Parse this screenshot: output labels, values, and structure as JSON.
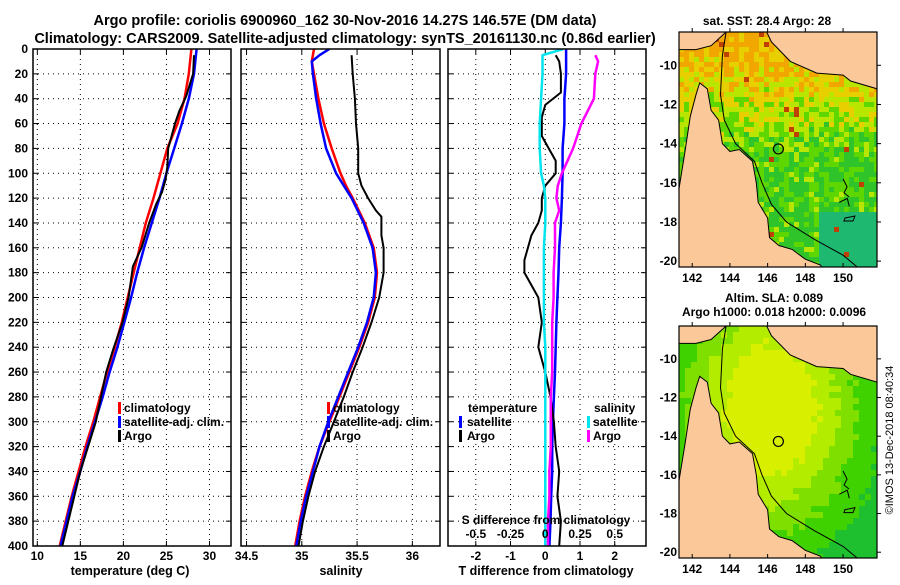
{
  "header": {
    "title_line1": "Argo profile: coriolis 6900960_162 30-Nov-2016 14.27S 146.57E (DM data)",
    "title_line2": "Climatology: CARS2009. Satellite-adjusted climatology: synTS_20161130.nc (0.86d earlier)"
  },
  "colors": {
    "climatology": "#ff0000",
    "satellite": "#0000ff",
    "argo": "#000000",
    "salinity_satellite": "#00e5ee",
    "salinity_argo": "#ff00ff",
    "land": "#fbc89a"
  },
  "chart_data": [
    {
      "type": "line",
      "id": "temperature",
      "xlabel": "temperature (deg C)",
      "ylabel": "",
      "xlim": [
        9.5,
        32.5
      ],
      "ylim": [
        400,
        0
      ],
      "xticks": [
        10,
        15,
        20,
        25,
        30
      ],
      "xtick_labels": [
        "10",
        "15",
        "20",
        "25",
        "30"
      ],
      "yticks": [
        0,
        20,
        40,
        60,
        80,
        100,
        120,
        140,
        160,
        180,
        200,
        220,
        240,
        260,
        280,
        300,
        320,
        340,
        360,
        380,
        400
      ],
      "ytick_labels": [
        "0",
        "20",
        "40",
        "60",
        "80",
        "100",
        "120",
        "140",
        "160",
        "180",
        "200",
        "220",
        "240",
        "260",
        "280",
        "300",
        "320",
        "340",
        "360",
        "380",
        "400"
      ],
      "grid": true,
      "legend": {
        "position": "center-right",
        "entries": [
          "climatology",
          "satellite-adj. clim.",
          "Argo"
        ]
      },
      "series": [
        {
          "name": "climatology",
          "color_key": "climatology",
          "depth": [
            0,
            20,
            40,
            60,
            80,
            100,
            120,
            140,
            160,
            180,
            200,
            220,
            240,
            260,
            280,
            300,
            320,
            340,
            360,
            380,
            400
          ],
          "values": [
            27.9,
            27.6,
            27.1,
            26.3,
            25.1,
            24.3,
            23.5,
            22.6,
            21.9,
            21.2,
            20.5,
            19.8,
            19.0,
            18.1,
            17.3,
            16.5,
            15.6,
            14.8,
            14.0,
            13.3,
            12.6
          ]
        },
        {
          "name": "satellite-adj. clim.",
          "color_key": "satellite",
          "depth": [
            0,
            20,
            40,
            60,
            80,
            100,
            120,
            140,
            160,
            180,
            200,
            220,
            240,
            260,
            280,
            300,
            320,
            340,
            360,
            380,
            400
          ],
          "values": [
            28.5,
            28.2,
            27.6,
            26.8,
            25.9,
            25.0,
            24.2,
            23.3,
            22.4,
            21.6,
            20.9,
            20.1,
            19.3,
            18.4,
            17.6,
            16.7,
            15.8,
            15.0,
            14.1,
            13.4,
            12.7
          ]
        },
        {
          "name": "Argo",
          "color_key": "argo",
          "depth": [
            5,
            20,
            38,
            50,
            60,
            70,
            80,
            95,
            105,
            115,
            125,
            140,
            160,
            175,
            190,
            200,
            220,
            240,
            260,
            280,
            300,
            320,
            340,
            360,
            380,
            400
          ],
          "values": [
            28.2,
            28.1,
            27.3,
            26.5,
            26.0,
            25.6,
            25.2,
            25.1,
            24.9,
            24.5,
            23.8,
            23.0,
            22.1,
            21.1,
            20.8,
            20.6,
            19.9,
            18.9,
            18.0,
            17.4,
            16.8,
            15.9,
            15.0,
            14.3,
            13.6,
            12.9
          ]
        }
      ]
    },
    {
      "type": "line",
      "id": "salinity",
      "xlabel": "salinity",
      "ylabel": "",
      "xlim": [
        34.45,
        36.25
      ],
      "ylim": [
        400,
        0
      ],
      "xticks": [
        34.5,
        35,
        35.5,
        36
      ],
      "xtick_labels": [
        "34.5",
        "35",
        "35.5",
        "36"
      ],
      "grid": true,
      "legend": {
        "position": "center-right",
        "entries": [
          "climatology",
          "satellite-adj. clim.",
          "Argo"
        ]
      },
      "series": [
        {
          "name": "climatology",
          "color_key": "climatology",
          "depth": [
            0,
            10,
            20,
            40,
            60,
            80,
            100,
            110,
            120,
            140,
            160,
            180,
            200,
            220,
            240,
            260,
            280,
            300,
            320,
            340,
            360,
            380,
            400
          ],
          "values": [
            35.11,
            35.09,
            35.11,
            35.15,
            35.2,
            35.27,
            35.35,
            35.4,
            35.46,
            35.57,
            35.65,
            35.68,
            35.66,
            35.6,
            35.52,
            35.43,
            35.34,
            35.25,
            35.16,
            35.09,
            35.03,
            34.98,
            34.94
          ]
        },
        {
          "name": "satellite-adj. clim.",
          "color_key": "satellite",
          "depth": [
            0,
            5,
            10,
            20,
            40,
            60,
            80,
            100,
            110,
            120,
            140,
            160,
            180,
            200,
            220,
            240,
            260,
            280,
            300,
            320,
            340,
            360,
            380,
            400
          ],
          "values": [
            35.25,
            35.16,
            35.09,
            35.1,
            35.13,
            35.17,
            35.22,
            35.31,
            35.38,
            35.45,
            35.56,
            35.64,
            35.67,
            35.65,
            35.59,
            35.51,
            35.42,
            35.33,
            35.24,
            35.16,
            35.1,
            35.04,
            34.99,
            34.95
          ]
        },
        {
          "name": "Argo",
          "color_key": "argo",
          "depth": [
            5,
            20,
            40,
            60,
            80,
            100,
            110,
            120,
            130,
            135,
            150,
            160,
            180,
            200,
            220,
            240,
            260,
            280,
            300,
            320,
            340,
            360,
            380,
            400
          ],
          "values": [
            35.45,
            35.46,
            35.48,
            35.49,
            35.51,
            35.51,
            35.54,
            35.6,
            35.67,
            35.72,
            35.72,
            35.74,
            35.74,
            35.7,
            35.63,
            35.55,
            35.46,
            35.38,
            35.29,
            35.2,
            35.12,
            35.06,
            35.01,
            34.97
          ]
        }
      ]
    },
    {
      "type": "line",
      "id": "difference",
      "xlabel": "T difference from climatology",
      "x2label": "S difference from climatology",
      "xlim": [
        -2.8,
        2.9
      ],
      "x2lim": [
        -0.7,
        0.725
      ],
      "ylim": [
        400,
        0
      ],
      "xticks": [
        -2,
        -1,
        0,
        1,
        2
      ],
      "xtick_labels": [
        "-2",
        "-1",
        "0",
        "1",
        "2"
      ],
      "x2ticks": [
        -0.5,
        -0.25,
        0,
        0.25,
        0.5
      ],
      "x2tick_labels": [
        "-0.5",
        "-0.25",
        "0",
        "0.25",
        "0.5"
      ],
      "grid": true,
      "legend": {
        "position": "center",
        "temperature_heading": "temperature",
        "salinity_heading": "salinity",
        "temperature_entries": [
          "satellite",
          "Argo"
        ],
        "salinity_entries": [
          "satellite",
          "Argo"
        ]
      },
      "series": [
        {
          "name": "temperature satellite",
          "axis": "T",
          "color_key": "satellite",
          "depth": [
            0,
            20,
            40,
            60,
            80,
            100,
            120,
            140,
            160,
            180,
            200,
            220,
            240,
            260,
            280,
            300,
            320,
            340,
            360,
            380,
            400
          ],
          "values": [
            0.6,
            0.6,
            0.55,
            0.55,
            0.5,
            0.5,
            0.48,
            0.45,
            0.4,
            0.38,
            0.35,
            0.32,
            0.3,
            0.28,
            0.25,
            0.22,
            0.2,
            0.2,
            0.17,
            0.15,
            0.12
          ]
        },
        {
          "name": "temperature Argo",
          "axis": "T",
          "color_key": "argo",
          "depth": [
            5,
            10,
            20,
            35,
            45,
            55,
            70,
            80,
            90,
            100,
            110,
            120,
            130,
            140,
            150,
            160,
            170,
            180,
            190,
            200,
            220,
            240,
            260,
            280,
            300,
            320,
            340,
            360,
            380,
            400
          ],
          "values": [
            0.3,
            0.4,
            0.45,
            0.45,
            0.0,
            -0.1,
            -0.1,
            0.1,
            0.3,
            0.3,
            0.0,
            -0.1,
            -0.1,
            -0.2,
            -0.4,
            -0.5,
            -0.6,
            -0.6,
            -0.4,
            -0.2,
            -0.1,
            -0.2,
            0.0,
            0.15,
            0.25,
            0.3,
            0.4,
            0.35,
            0.45,
            0.4
          ]
        },
        {
          "name": "salinity satellite",
          "axis": "S",
          "color_key": "salinity_satellite",
          "depth": [
            0,
            5,
            20,
            40,
            60,
            80,
            100,
            110,
            120,
            140,
            160,
            180,
            200,
            220,
            240,
            260,
            280,
            300,
            320,
            340,
            360,
            380,
            400
          ],
          "values": [
            0.13,
            -0.02,
            -0.02,
            -0.03,
            -0.04,
            -0.04,
            -0.03,
            -0.01,
            0.0,
            0.0,
            -0.01,
            -0.01,
            -0.01,
            -0.01,
            0.0,
            0.0,
            0.0,
            0.0,
            0.0,
            0.0,
            0.0,
            0.0,
            0.0
          ]
        },
        {
          "name": "salinity Argo",
          "axis": "S",
          "color_key": "salinity_argo",
          "depth": [
            5,
            10,
            20,
            40,
            60,
            80,
            100,
            110,
            120,
            130,
            140,
            160,
            180,
            200,
            220,
            240,
            260,
            280,
            300,
            320,
            340,
            360,
            380,
            400
          ],
          "values": [
            0.36,
            0.38,
            0.36,
            0.35,
            0.26,
            0.2,
            0.12,
            0.09,
            0.08,
            0.1,
            0.07,
            0.07,
            0.06,
            0.06,
            0.05,
            0.05,
            0.05,
            0.04,
            0.04,
            0.04,
            0.03,
            0.03,
            0.02,
            0.02
          ]
        }
      ]
    },
    {
      "type": "heatmap",
      "id": "sst_map",
      "title": "sat. SST: 28.4 Argo: 28",
      "xlim": [
        141.3,
        151.8
      ],
      "ylim": [
        -20.3,
        -8.3
      ],
      "xticks": [
        142,
        144,
        146,
        148,
        150
      ],
      "xtick_labels": [
        "142",
        "144",
        "146",
        "148",
        "150"
      ],
      "yticks": [
        -10,
        -12,
        -14,
        -16,
        -18,
        -20
      ],
      "ytick_labels": [
        "-10",
        "-12",
        "-14",
        "-16",
        "-18",
        "-20"
      ],
      "profile_marker": {
        "lon": 146.57,
        "lat": -14.27
      },
      "sat_sst": 28.4,
      "argo_sst": 28
    },
    {
      "type": "heatmap",
      "id": "sla_map",
      "title_line1": "Altim. SLA: 0.089",
      "title_line2": "Argo h1000: 0.018 h2000: 0.0096",
      "xlim": [
        141.3,
        151.8
      ],
      "ylim": [
        -20.3,
        -8.3
      ],
      "xticks": [
        142,
        144,
        146,
        148,
        150
      ],
      "xtick_labels": [
        "142",
        "144",
        "146",
        "148",
        "150"
      ],
      "yticks": [
        -10,
        -12,
        -14,
        -16,
        -18,
        -20
      ],
      "ytick_labels": [
        "-10",
        "-12",
        "-14",
        "-16",
        "-18",
        "-20"
      ],
      "profile_marker": {
        "lon": 146.57,
        "lat": -14.27
      },
      "altim_sla": 0.089,
      "argo_h1000": 0.018,
      "argo_h2000": 0.0096
    }
  ],
  "footer": {
    "credit": "©IMOS 13-Dec-2018 08:40:34"
  }
}
